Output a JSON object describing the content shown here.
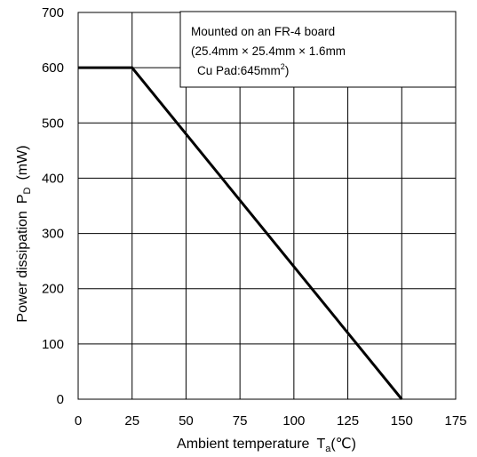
{
  "chart_data": {
    "type": "line",
    "xlabel_main": "Ambient temperature",
    "xlabel_symbol": "T",
    "xlabel_sub": "a",
    "xlabel_unit": "(℃)",
    "ylabel_main": "Power dissipation",
    "ylabel_symbol": "P",
    "ylabel_sub": "D",
    "ylabel_unit": "(mW)",
    "xlim": [
      0,
      175
    ],
    "ylim": [
      0,
      700
    ],
    "x_ticks": [
      0,
      25,
      50,
      75,
      100,
      125,
      150,
      175
    ],
    "y_ticks": [
      0,
      100,
      200,
      300,
      400,
      500,
      600,
      700
    ],
    "grid": true,
    "series": [
      {
        "x": [
          0,
          25,
          150
        ],
        "y": [
          600,
          600,
          0
        ]
      }
    ],
    "annotation": {
      "line1": "Mounted on an FR-4 board",
      "line2": "(25.4mm × 25.4mm × 1.6mm",
      "line3_prefix": "Cu Pad:645mm",
      "line3_sup": "2",
      "line3_suffix": ")"
    }
  }
}
